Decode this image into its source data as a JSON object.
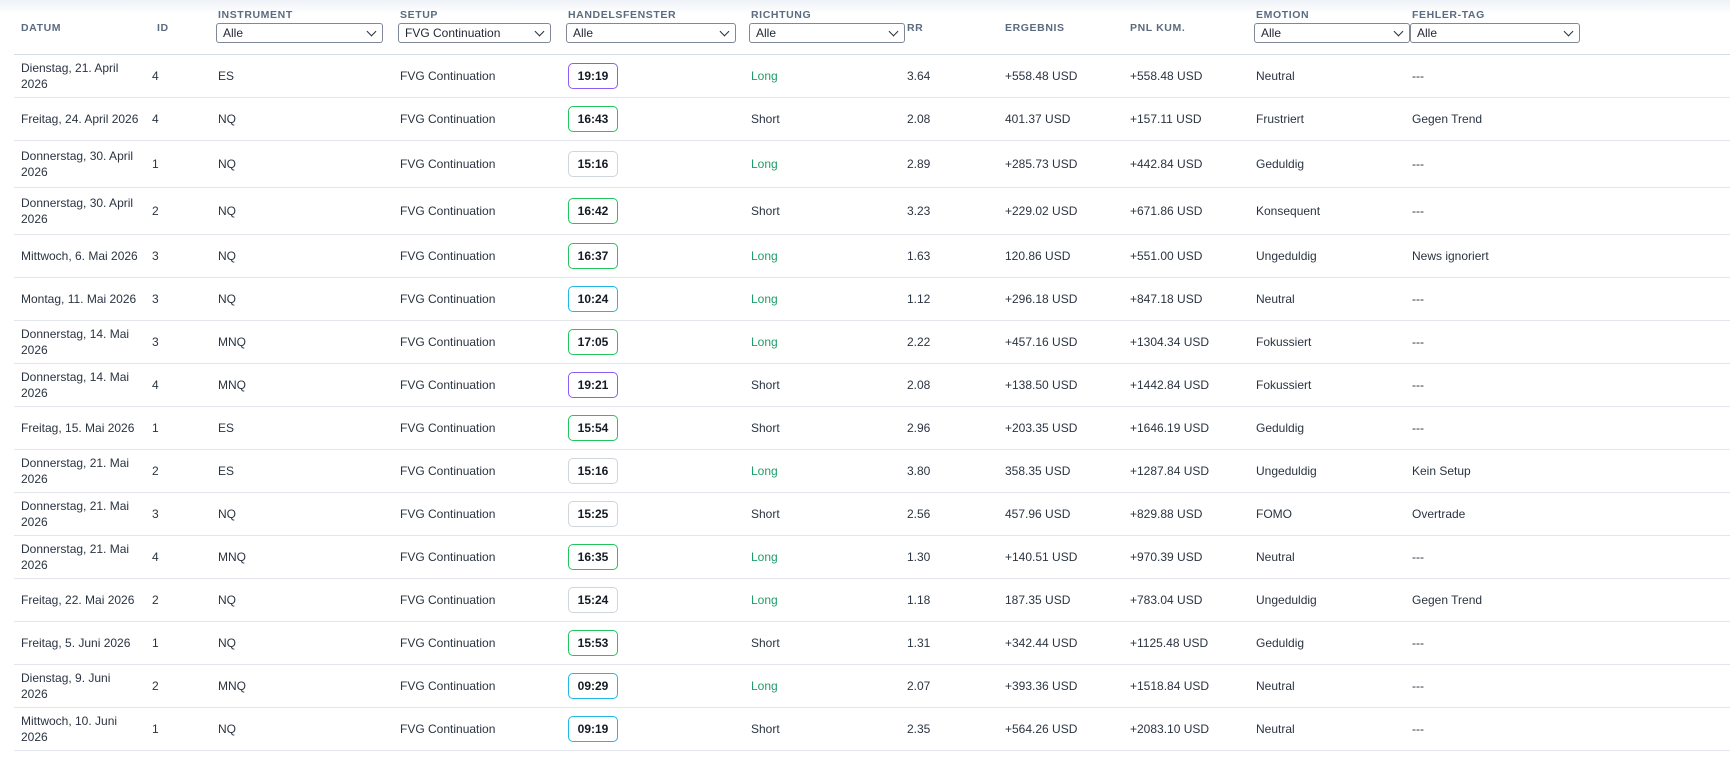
{
  "headers": {
    "datum": "DATUM",
    "id": "ID",
    "instrument": "INSTRUMENT",
    "setup": "SETUP",
    "handelsfenster": "HANDELSFENSTER",
    "richtung": "RICHTUNG",
    "rr": "RR",
    "ergebnis": "ERGEBNIS",
    "pnl": "PNL KUM.",
    "emotion": "EMOTION",
    "fehler": "FEHLER-TAG"
  },
  "filters": {
    "instrument": "Alle",
    "setup": "FVG Continuation",
    "handelsfenster": "Alle",
    "richtung": "Alle",
    "emotion": "Alle",
    "fehler": "Alle"
  },
  "colors": {
    "chip_purple": "#8b5cf6",
    "chip_green": "#22c55e",
    "chip_cyan": "#22b8e6",
    "chip_gray": "#cfd5dd",
    "long_text": "#1f9d6a"
  },
  "rows": [
    {
      "datum": "Dienstag, 21. April 2026",
      "id": "4",
      "instrument": "ES",
      "setup": "FVG Continuation",
      "time": "19:19",
      "window": "purple",
      "richtung": "Long",
      "rr": "3.64",
      "ergebnis": "+558.48 USD",
      "pnl": "+558.48 USD",
      "emotion": "Neutral",
      "fehler": "---"
    },
    {
      "datum": "Freitag, 24. April 2026",
      "id": "4",
      "instrument": "NQ",
      "setup": "FVG Continuation",
      "time": "16:43",
      "window": "green",
      "richtung": "Short",
      "rr": "2.08",
      "ergebnis": "401.37 USD",
      "pnl": "+157.11 USD",
      "emotion": "Frustriert",
      "fehler": "Gegen Trend"
    },
    {
      "datum": "Donnerstag, 30. April 2026",
      "id": "1",
      "instrument": "NQ",
      "setup": "FVG Continuation",
      "time": "15:16",
      "window": "gray",
      "richtung": "Long",
      "rr": "2.89",
      "ergebnis": "+285.73 USD",
      "pnl": "+442.84 USD",
      "emotion": "Geduldig",
      "fehler": "---"
    },
    {
      "datum": "Donnerstag, 30. April 2026",
      "id": "2",
      "instrument": "NQ",
      "setup": "FVG Continuation",
      "time": "16:42",
      "window": "green",
      "richtung": "Short",
      "rr": "3.23",
      "ergebnis": "+229.02 USD",
      "pnl": "+671.86 USD",
      "emotion": "Konsequent",
      "fehler": "---"
    },
    {
      "datum": "Mittwoch, 6. Mai 2026",
      "id": "3",
      "instrument": "NQ",
      "setup": "FVG Continuation",
      "time": "16:37",
      "window": "green",
      "richtung": "Long",
      "rr": "1.63",
      "ergebnis": "120.86 USD",
      "pnl": "+551.00 USD",
      "emotion": "Ungeduldig",
      "fehler": "News ignoriert"
    },
    {
      "datum": "Montag, 11. Mai 2026",
      "id": "3",
      "instrument": "NQ",
      "setup": "FVG Continuation",
      "time": "10:24",
      "window": "cyan",
      "richtung": "Long",
      "rr": "1.12",
      "ergebnis": "+296.18 USD",
      "pnl": "+847.18 USD",
      "emotion": "Neutral",
      "fehler": "---"
    },
    {
      "datum": "Donnerstag, 14. Mai 2026",
      "id": "3",
      "instrument": "MNQ",
      "setup": "FVG Continuation",
      "time": "17:05",
      "window": "green",
      "richtung": "Long",
      "rr": "2.22",
      "ergebnis": "+457.16 USD",
      "pnl": "+1304.34 USD",
      "emotion": "Fokussiert",
      "fehler": "---"
    },
    {
      "datum": "Donnerstag, 14. Mai 2026",
      "id": "4",
      "instrument": "MNQ",
      "setup": "FVG Continuation",
      "time": "19:21",
      "window": "purple",
      "richtung": "Short",
      "rr": "2.08",
      "ergebnis": "+138.50 USD",
      "pnl": "+1442.84 USD",
      "emotion": "Fokussiert",
      "fehler": "---"
    },
    {
      "datum": "Freitag, 15. Mai 2026",
      "id": "1",
      "instrument": "ES",
      "setup": "FVG Continuation",
      "time": "15:54",
      "window": "green",
      "richtung": "Short",
      "rr": "2.96",
      "ergebnis": "+203.35 USD",
      "pnl": "+1646.19 USD",
      "emotion": "Geduldig",
      "fehler": "---"
    },
    {
      "datum": "Donnerstag, 21. Mai 2026",
      "id": "2",
      "instrument": "ES",
      "setup": "FVG Continuation",
      "time": "15:16",
      "window": "gray",
      "richtung": "Long",
      "rr": "3.80",
      "ergebnis": "358.35 USD",
      "pnl": "+1287.84 USD",
      "emotion": "Ungeduldig",
      "fehler": "Kein Setup"
    },
    {
      "datum": "Donnerstag, 21. Mai 2026",
      "id": "3",
      "instrument": "NQ",
      "setup": "FVG Continuation",
      "time": "15:25",
      "window": "gray",
      "richtung": "Short",
      "rr": "2.56",
      "ergebnis": "457.96 USD",
      "pnl": "+829.88 USD",
      "emotion": "FOMO",
      "fehler": "Overtrade"
    },
    {
      "datum": "Donnerstag, 21. Mai 2026",
      "id": "4",
      "instrument": "MNQ",
      "setup": "FVG Continuation",
      "time": "16:35",
      "window": "green",
      "richtung": "Long",
      "rr": "1.30",
      "ergebnis": "+140.51 USD",
      "pnl": "+970.39 USD",
      "emotion": "Neutral",
      "fehler": "---"
    },
    {
      "datum": "Freitag, 22. Mai 2026",
      "id": "2",
      "instrument": "NQ",
      "setup": "FVG Continuation",
      "time": "15:24",
      "window": "gray",
      "richtung": "Long",
      "rr": "1.18",
      "ergebnis": "187.35 USD",
      "pnl": "+783.04 USD",
      "emotion": "Ungeduldig",
      "fehler": "Gegen Trend"
    },
    {
      "datum": "Freitag, 5. Juni 2026",
      "id": "1",
      "instrument": "NQ",
      "setup": "FVG Continuation",
      "time": "15:53",
      "window": "green",
      "richtung": "Short",
      "rr": "1.31",
      "ergebnis": "+342.44 USD",
      "pnl": "+1125.48 USD",
      "emotion": "Geduldig",
      "fehler": "---"
    },
    {
      "datum": "Dienstag, 9. Juni 2026",
      "id": "2",
      "instrument": "MNQ",
      "setup": "FVG Continuation",
      "time": "09:29",
      "window": "cyan",
      "richtung": "Long",
      "rr": "2.07",
      "ergebnis": "+393.36 USD",
      "pnl": "+1518.84 USD",
      "emotion": "Neutral",
      "fehler": "---"
    },
    {
      "datum": "Mittwoch, 10. Juni 2026",
      "id": "1",
      "instrument": "NQ",
      "setup": "FVG Continuation",
      "time": "09:19",
      "window": "cyan",
      "richtung": "Short",
      "rr": "2.35",
      "ergebnis": "+564.26 USD",
      "pnl": "+2083.10 USD",
      "emotion": "Neutral",
      "fehler": "---"
    }
  ]
}
